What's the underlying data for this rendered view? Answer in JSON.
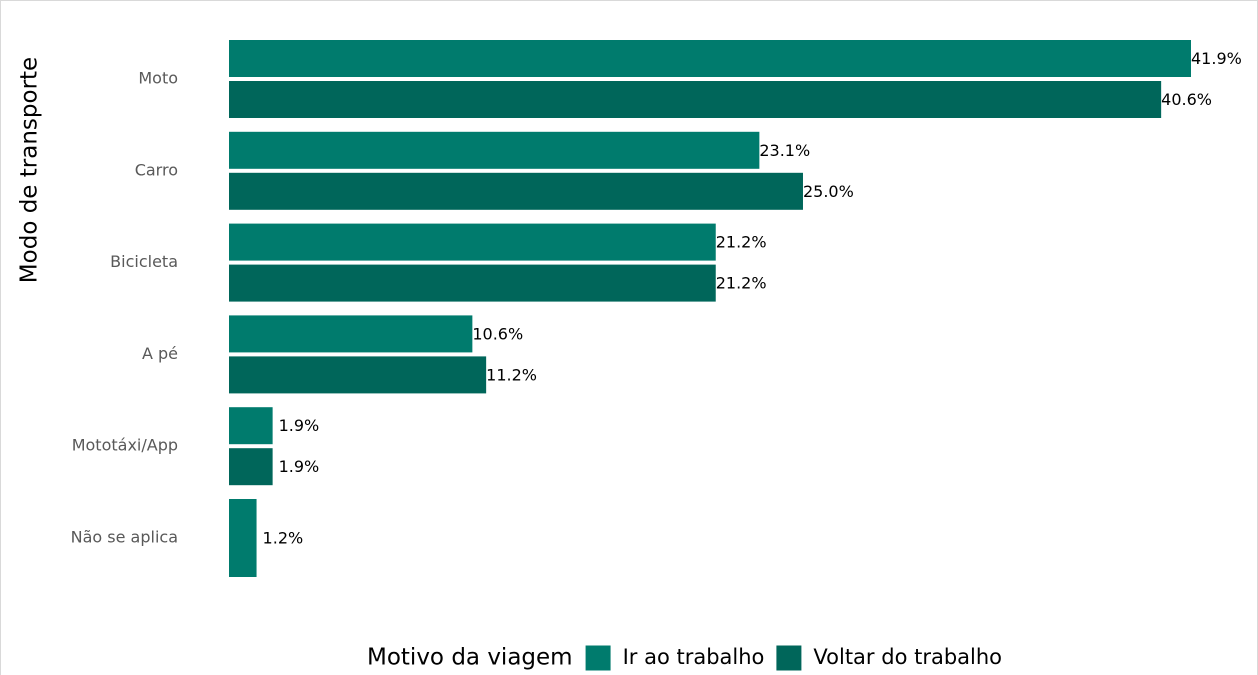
{
  "chart_data": {
    "type": "hbar",
    "y_label": "Modo de transporte",
    "legend_title": "Motivo da viagem",
    "legend": "bottom",
    "categories": [
      "Moto",
      "Carro",
      "Bicicleta",
      "A pé",
      "Mototáxi/App",
      "Não se aplica"
    ],
    "series": [
      {
        "name": "Ir ao trabalho",
        "color": "#007b6d",
        "values": [
          41.9,
          23.1,
          21.2,
          10.6,
          1.9,
          1.2
        ],
        "value_labels": [
          "41.9%",
          "23.1%",
          "21.2%",
          "10.6%",
          "1.9%",
          "1.2%"
        ]
      },
      {
        "name": "Voltar do trabalho",
        "color": "#00665a",
        "values": [
          40.6,
          25.0,
          21.2,
          11.2,
          1.9,
          null
        ],
        "value_labels": [
          "40.6%",
          "25.0%",
          "21.2%",
          "11.2%",
          "1.9%",
          null
        ]
      }
    ]
  }
}
